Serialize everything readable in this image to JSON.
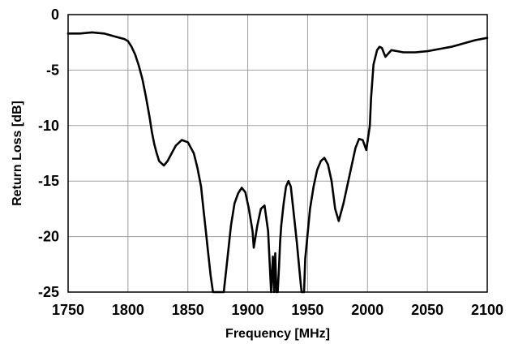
{
  "chart_data": {
    "type": "line",
    "title": "",
    "xlabel": "Frequency [MHz]",
    "ylabel": "Return Loss [dB]",
    "xlim": [
      1750,
      2100
    ],
    "ylim": [
      -25,
      0
    ],
    "xticks": [
      1750,
      1800,
      1850,
      1900,
      1950,
      2000,
      2050,
      2100
    ],
    "yticks": [
      0,
      -5,
      -10,
      -15,
      -20,
      -25
    ],
    "xtick_labels": [
      "1750",
      "1800",
      "1850",
      "1900",
      "1950",
      "2000",
      "2050",
      "2100"
    ],
    "ytick_labels": [
      "0",
      "-5",
      "-10",
      "-15",
      "-20",
      "-25"
    ],
    "grid": true,
    "legend": "none",
    "line_color": "#000000",
    "grid_color": "#a0a0a0",
    "series": [
      {
        "x": [
          1750,
          1760,
          1770,
          1780,
          1790,
          1797,
          1800,
          1803,
          1806,
          1809,
          1812,
          1815,
          1818,
          1820,
          1822,
          1824,
          1826,
          1828,
          1830,
          1833,
          1836,
          1840,
          1845,
          1850,
          1855,
          1858,
          1861,
          1863,
          1865,
          1867,
          1869,
          1871,
          1872,
          1880,
          1883,
          1886,
          1889,
          1892,
          1895,
          1898,
          1901,
          1904,
          1905,
          1908,
          1911,
          1914,
          1917,
          1919.5,
          1921,
          1922,
          1923,
          1924,
          1925,
          1926,
          1927,
          1928,
          1930,
          1932,
          1934,
          1936,
          1938,
          1941,
          1944,
          1945,
          1947,
          1948,
          1952,
          1955,
          1958,
          1961,
          1964,
          1967,
          1970,
          1973,
          1976,
          1980,
          1985,
          1990,
          1993,
          1996,
          1999,
          2002,
          2003,
          2005,
          2008,
          2010,
          2012,
          2015,
          2020,
          2025,
          2030,
          2040,
          2050,
          2060,
          2070,
          2080,
          2090,
          2100
        ],
        "y": [
          -1.7,
          -1.7,
          -1.6,
          -1.7,
          -2.0,
          -2.2,
          -2.4,
          -2.9,
          -3.6,
          -4.6,
          -5.8,
          -7.4,
          -9.2,
          -10.6,
          -11.7,
          -12.5,
          -13.2,
          -13.4,
          -13.6,
          -13.2,
          -12.6,
          -11.8,
          -11.3,
          -11.5,
          -12.5,
          -13.8,
          -15.5,
          -17.5,
          -19.5,
          -21.5,
          -23.5,
          -25,
          -25,
          -25,
          -22.0,
          -19.0,
          -17.0,
          -16.1,
          -15.6,
          -16.0,
          -17.5,
          -19.5,
          -21.0,
          -19.0,
          -17.5,
          -17.2,
          -19.5,
          -25,
          -21.8,
          -25,
          -21.5,
          -25,
          -25,
          -23.0,
          -20.5,
          -19.0,
          -17.0,
          -15.5,
          -15.0,
          -15.5,
          -17.5,
          -20.5,
          -24.0,
          -25,
          -25,
          -22.0,
          -17.5,
          -15.5,
          -14.0,
          -13.2,
          -12.9,
          -13.5,
          -15.0,
          -17.5,
          -18.6,
          -17.0,
          -14.5,
          -12.0,
          -11.2,
          -11.3,
          -12.2,
          -10.0,
          -7.5,
          -4.5,
          -3.2,
          -2.9,
          -3.0,
          -3.8,
          -3.2,
          -3.3,
          -3.4,
          -3.4,
          -3.3,
          -3.1,
          -2.9,
          -2.6,
          -2.3,
          -2.1
        ]
      }
    ]
  }
}
